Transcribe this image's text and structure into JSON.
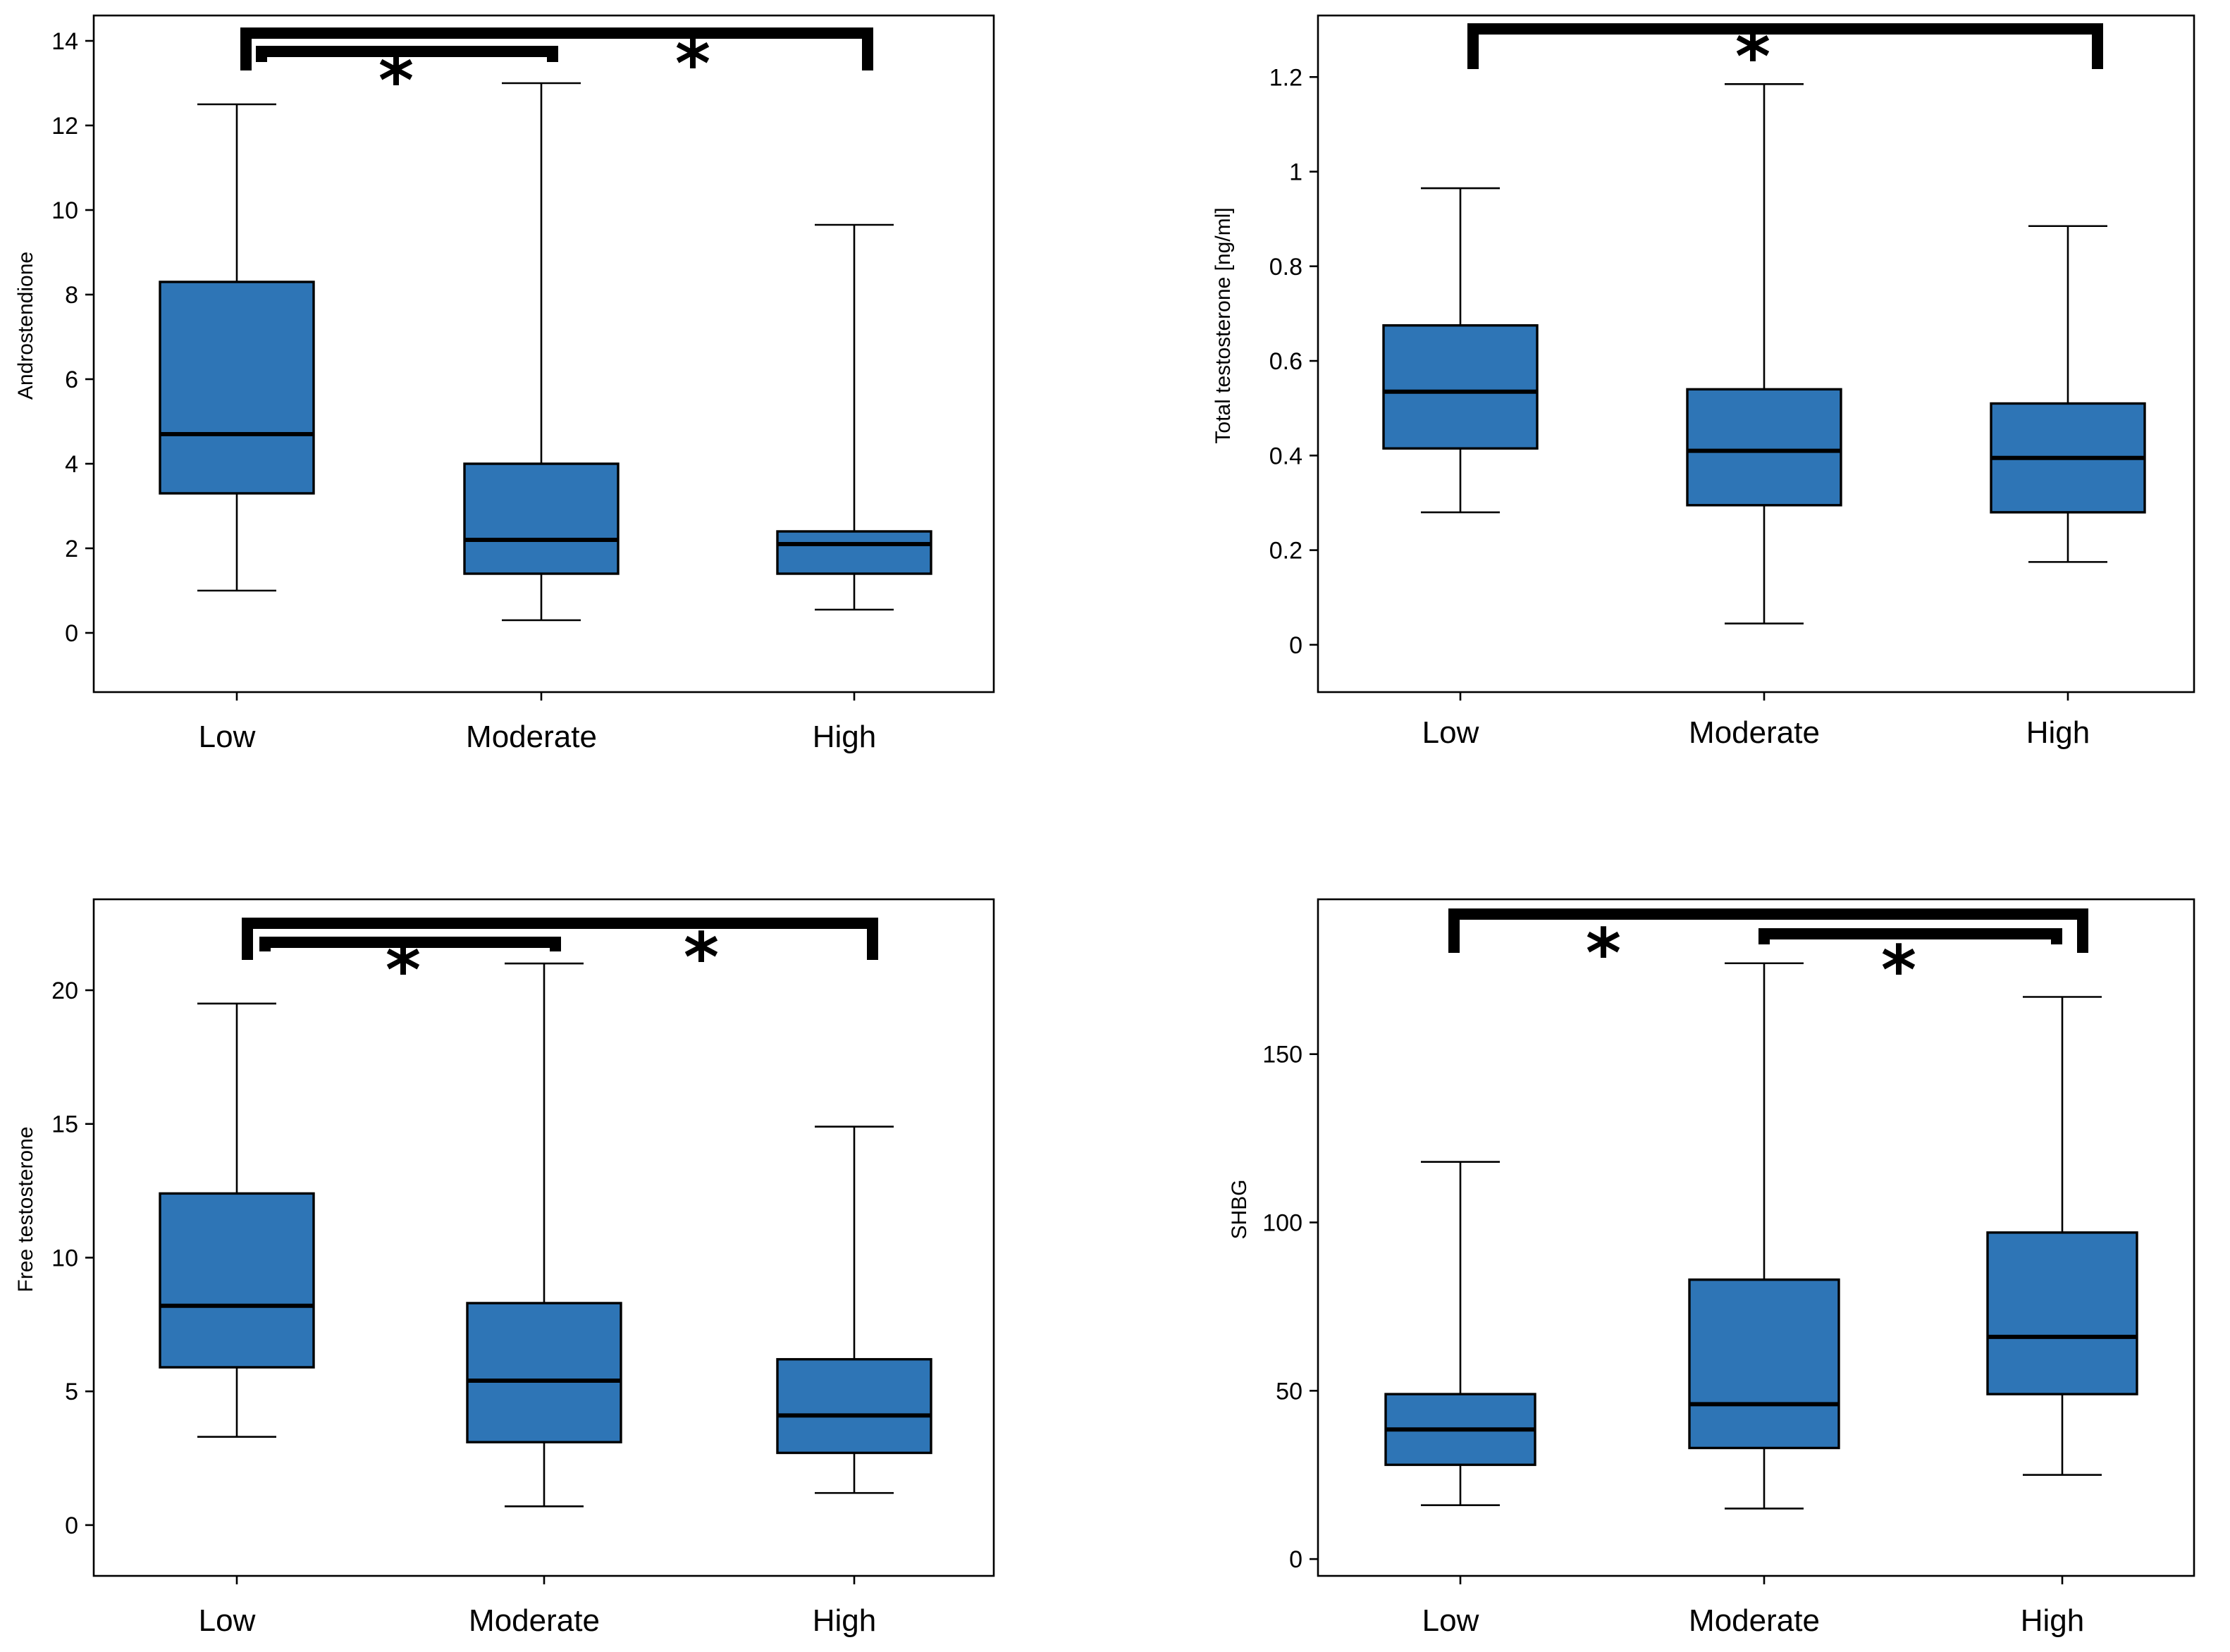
{
  "style": {
    "box_fill": "#2E75B6",
    "line_color": "#000000",
    "background": "#FFFFFF"
  },
  "chart_data": [
    {
      "type": "box",
      "title": "",
      "ylabel": "Androstendione",
      "xlabel": "",
      "categories": [
        "Low",
        "Moderate",
        "High"
      ],
      "ylim": [
        -1.4,
        14.6
      ],
      "yticks": [
        0,
        2,
        4,
        6,
        8,
        10,
        12,
        14
      ],
      "boxes": [
        {
          "min": 1.0,
          "q1": 3.3,
          "median": 4.7,
          "q3": 8.3,
          "max": 12.5
        },
        {
          "min": 0.3,
          "q1": 1.4,
          "median": 2.2,
          "q3": 4.0,
          "max": 13.0
        },
        {
          "min": 0.55,
          "q1": 1.4,
          "median": 2.1,
          "q3": 2.4,
          "max": 9.65
        }
      ],
      "significance": [
        {
          "from": 0,
          "to": 1,
          "label": "*"
        },
        {
          "from": 0,
          "to": 2,
          "label": "*"
        }
      ]
    },
    {
      "type": "box",
      "title": "",
      "ylabel": "Total testosterone [ng/ml]",
      "xlabel": "",
      "categories": [
        "Low",
        "Moderate",
        "High"
      ],
      "ylim": [
        -0.1,
        1.33
      ],
      "yticks": [
        0,
        0.2,
        0.4,
        0.6,
        0.8,
        1,
        1.2
      ],
      "boxes": [
        {
          "min": 0.28,
          "q1": 0.415,
          "median": 0.535,
          "q3": 0.675,
          "max": 0.965
        },
        {
          "min": 0.045,
          "q1": 0.295,
          "median": 0.41,
          "q3": 0.54,
          "max": 1.185
        },
        {
          "min": 0.175,
          "q1": 0.28,
          "median": 0.395,
          "q3": 0.51,
          "max": 0.885
        }
      ],
      "significance": [
        {
          "from": 0,
          "to": 2,
          "label": "*"
        }
      ]
    },
    {
      "type": "box",
      "title": "",
      "ylabel": "Free testosterone",
      "xlabel": "",
      "categories": [
        "Low",
        "Moderate",
        "High"
      ],
      "ylim": [
        -1.9,
        23.4
      ],
      "yticks": [
        0,
        5,
        10,
        15,
        20
      ],
      "boxes": [
        {
          "min": 3.3,
          "q1": 5.9,
          "median": 8.2,
          "q3": 12.4,
          "max": 19.5
        },
        {
          "min": 0.7,
          "q1": 3.1,
          "median": 5.4,
          "q3": 8.3,
          "max": 21.0
        },
        {
          "min": 1.2,
          "q1": 2.7,
          "median": 4.1,
          "q3": 6.2,
          "max": 14.9
        }
      ],
      "significance": [
        {
          "from": 0,
          "to": 1,
          "label": "*"
        },
        {
          "from": 0,
          "to": 2,
          "label": "*"
        }
      ]
    },
    {
      "type": "box",
      "title": "",
      "ylabel": "SHBG",
      "xlabel": "",
      "categories": [
        "Low",
        "Moderate",
        "High"
      ],
      "ylim": [
        -5,
        196
      ],
      "yticks": [
        0,
        50,
        100,
        150
      ],
      "boxes": [
        {
          "min": 16,
          "q1": 28,
          "median": 38.5,
          "q3": 49,
          "max": 118
        },
        {
          "min": 15,
          "q1": 33,
          "median": 46,
          "q3": 83,
          "max": 177
        },
        {
          "min": 25,
          "q1": 49,
          "median": 66,
          "q3": 97,
          "max": 167
        }
      ],
      "significance": [
        {
          "from": 0,
          "to": 2,
          "label": "*"
        },
        {
          "from": 1,
          "to": 2,
          "label": "*"
        }
      ]
    }
  ]
}
